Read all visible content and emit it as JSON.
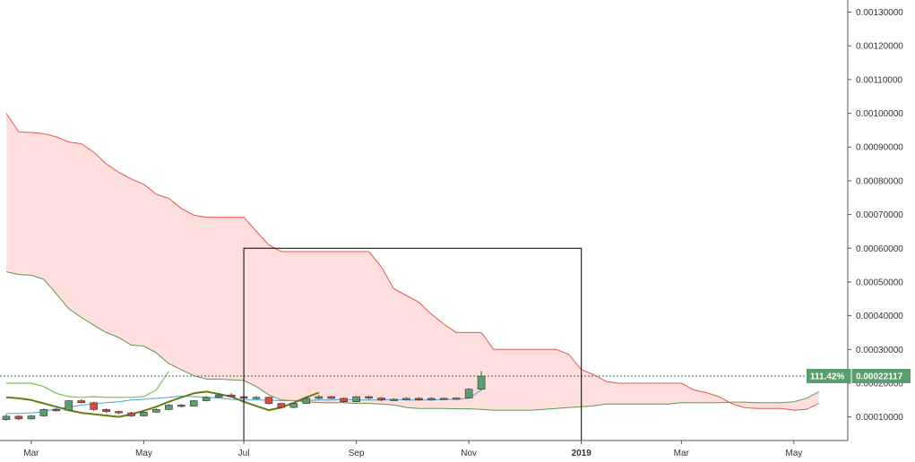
{
  "chart_data": {
    "type": "candlestick",
    "x_ticks": [
      {
        "label": "Mar",
        "bold": false
      },
      {
        "label": "May",
        "bold": false
      },
      {
        "label": "Jul",
        "bold": false
      },
      {
        "label": "Sep",
        "bold": false
      },
      {
        "label": "Nov",
        "bold": false
      },
      {
        "label": "2019",
        "bold": true
      },
      {
        "label": "Mar",
        "bold": false
      },
      {
        "label": "May",
        "bold": false
      }
    ],
    "y_ticks": [
      "0.00010000",
      "0.00020000",
      "0.00030000",
      "0.00040000",
      "0.00050000",
      "0.00060000",
      "0.00070000",
      "0.00080000",
      "0.00090000",
      "0.00100000",
      "0.00110000",
      "0.00120000",
      "0.00130000"
    ],
    "ylim": [
      3e-05,
      0.00132
    ],
    "week_range": [
      0,
      67
    ],
    "x_tick_weeks": [
      2,
      11,
      19,
      28,
      37,
      46,
      54,
      63
    ],
    "last_price": {
      "change_label": "111.42%",
      "value": "0.00022117",
      "numeric": 0.00022117
    },
    "span_a": [
      [
        0,
        0.00053
      ],
      [
        1,
        0.000522
      ],
      [
        2,
        0.00052
      ],
      [
        3,
        0.000508
      ],
      [
        4,
        0.000465
      ],
      [
        5,
        0.00042
      ],
      [
        6,
        0.000395
      ],
      [
        7,
        0.000372
      ],
      [
        8,
        0.00035
      ],
      [
        9,
        0.000335
      ],
      [
        10,
        0.000313
      ],
      [
        11,
        0.00031
      ],
      [
        12,
        0.00029
      ],
      [
        13,
        0.000258
      ],
      [
        14,
        0.00024
      ],
      [
        15,
        0.000222
      ],
      [
        16,
        0.000212
      ],
      [
        17,
        0.000212
      ],
      [
        18,
        0.00021
      ],
      [
        19,
        0.000208
      ],
      [
        20,
        0.00019
      ],
      [
        21,
        0.000165
      ],
      [
        22,
        0.00015
      ],
      [
        23,
        0.000148
      ],
      [
        24,
        0.000145
      ],
      [
        25,
        0.000142
      ],
      [
        26,
        0.000142
      ],
      [
        27,
        0.000142
      ],
      [
        28,
        0.00014
      ],
      [
        29,
        0.00014
      ],
      [
        30,
        0.000138
      ],
      [
        31,
        0.000135
      ],
      [
        32,
        0.000128
      ],
      [
        33,
        0.000125
      ],
      [
        34,
        0.000125
      ],
      [
        35,
        0.000125
      ],
      [
        36,
        0.000124
      ],
      [
        37,
        0.000124
      ],
      [
        38,
        0.000122
      ],
      [
        39,
        0.00012
      ],
      [
        40,
        0.00012
      ],
      [
        41,
        0.00012
      ],
      [
        42,
        0.00012
      ],
      [
        43,
        0.000122
      ],
      [
        44,
        0.000125
      ],
      [
        45,
        0.000128
      ],
      [
        46,
        0.00013
      ],
      [
        47,
        0.000133
      ],
      [
        48,
        0.000138
      ],
      [
        49,
        0.000138
      ],
      [
        50,
        0.000138
      ],
      [
        51,
        0.000138
      ],
      [
        52,
        0.000138
      ],
      [
        53,
        0.000138
      ],
      [
        54,
        0.000142
      ],
      [
        55,
        0.000142
      ],
      [
        56,
        0.000142
      ],
      [
        57,
        0.000142
      ],
      [
        58,
        0.000144
      ],
      [
        59,
        0.000144
      ],
      [
        60,
        0.000142
      ],
      [
        61,
        0.000142
      ],
      [
        62,
        0.000142
      ],
      [
        63,
        0.000145
      ],
      [
        64,
        0.000155
      ],
      [
        65,
        0.000175
      ]
    ],
    "span_b": [
      [
        0,
        0.001
      ],
      [
        1,
        0.000945
      ],
      [
        2,
        0.000943
      ],
      [
        3,
        0.00094
      ],
      [
        4,
        0.00093
      ],
      [
        5,
        0.000915
      ],
      [
        6,
        0.00091
      ],
      [
        7,
        0.000885
      ],
      [
        8,
        0.00085
      ],
      [
        9,
        0.000825
      ],
      [
        10,
        0.000805
      ],
      [
        11,
        0.00079
      ],
      [
        12,
        0.00076
      ],
      [
        13,
        0.000748
      ],
      [
        14,
        0.000718
      ],
      [
        15,
        0.000698
      ],
      [
        16,
        0.000692
      ],
      [
        17,
        0.000692
      ],
      [
        18,
        0.000692
      ],
      [
        19,
        0.000692
      ],
      [
        20,
        0.00065
      ],
      [
        21,
        0.00061
      ],
      [
        22,
        0.00059
      ],
      [
        23,
        0.00059
      ],
      [
        24,
        0.00059
      ],
      [
        25,
        0.00059
      ],
      [
        26,
        0.00059
      ],
      [
        27,
        0.00059
      ],
      [
        28,
        0.00059
      ],
      [
        29,
        0.00059
      ],
      [
        30,
        0.000545
      ],
      [
        31,
        0.00048
      ],
      [
        32,
        0.00046
      ],
      [
        33,
        0.00044
      ],
      [
        34,
        0.000405
      ],
      [
        35,
        0.000375
      ],
      [
        36,
        0.00035
      ],
      [
        37,
        0.00035
      ],
      [
        38,
        0.00035
      ],
      [
        39,
        0.0003
      ],
      [
        40,
        0.0003
      ],
      [
        41,
        0.0003
      ],
      [
        42,
        0.0003
      ],
      [
        43,
        0.0003
      ],
      [
        44,
        0.0003
      ],
      [
        45,
        0.000285
      ],
      [
        46,
        0.00024
      ],
      [
        47,
        0.000225
      ],
      [
        48,
        0.000205
      ],
      [
        49,
        0.0002
      ],
      [
        50,
        0.0002
      ],
      [
        51,
        0.0002
      ],
      [
        52,
        0.0002
      ],
      [
        53,
        0.0002
      ],
      [
        54,
        0.0002
      ],
      [
        55,
        0.00018
      ],
      [
        56,
        0.000172
      ],
      [
        57,
        0.00016
      ],
      [
        58,
        0.00014
      ],
      [
        59,
        0.000128
      ],
      [
        60,
        0.000125
      ],
      [
        61,
        0.000125
      ],
      [
        62,
        0.000125
      ],
      [
        63,
        0.00012
      ],
      [
        64,
        0.000122
      ],
      [
        65,
        0.00014
      ]
    ],
    "chikou": [
      [
        0,
        0.0002
      ],
      [
        1,
        0.0002
      ],
      [
        2,
        0.0002
      ],
      [
        3,
        0.00019
      ],
      [
        4,
        0.00017
      ],
      [
        5,
        0.00016
      ],
      [
        6,
        0.000158
      ],
      [
        7,
        0.00016
      ],
      [
        8,
        0.000158
      ],
      [
        9,
        0.000158
      ],
      [
        10,
        0.000158
      ],
      [
        11,
        0.00016
      ],
      [
        12,
        0.00018
      ],
      [
        13,
        0.000235
      ]
    ],
    "tenkan": [
      [
        0,
        0.00011
      ],
      [
        1,
        0.00011
      ],
      [
        2,
        0.000112
      ],
      [
        3,
        0.000115
      ],
      [
        4,
        0.000125
      ],
      [
        5,
        0.000128
      ],
      [
        6,
        0.000135
      ],
      [
        7,
        0.000138
      ],
      [
        8,
        0.000142
      ],
      [
        9,
        0.000145
      ],
      [
        10,
        0.00015
      ],
      [
        11,
        0.000152
      ],
      [
        12,
        0.000155
      ],
      [
        13,
        0.000158
      ],
      [
        14,
        0.000162
      ],
      [
        15,
        0.00016
      ],
      [
        16,
        0.000158
      ],
      [
        17,
        0.000156
      ],
      [
        18,
        0.000152
      ],
      [
        19,
        0.00015
      ],
      [
        20,
        0.00015
      ],
      [
        21,
        0.00015
      ],
      [
        22,
        0.000148
      ],
      [
        23,
        0.000148
      ],
      [
        24,
        0.000148
      ],
      [
        25,
        0.00015
      ],
      [
        26,
        0.00015
      ],
      [
        27,
        0.000152
      ],
      [
        28,
        0.00015
      ],
      [
        29,
        0.00015
      ],
      [
        30,
        0.00015
      ],
      [
        31,
        0.000152
      ],
      [
        32,
        0.00015
      ],
      [
        33,
        0.00015
      ],
      [
        34,
        0.00015
      ],
      [
        35,
        0.000152
      ],
      [
        36,
        0.000152
      ],
      [
        37,
        0.000155
      ],
      [
        38,
        0.00018
      ]
    ],
    "kijun": [
      [
        0,
        0.000158
      ],
      [
        1,
        0.000155
      ],
      [
        2,
        0.00015
      ],
      [
        3,
        0.00014
      ],
      [
        4,
        0.00013
      ],
      [
        5,
        0.00012
      ],
      [
        6,
        0.000112
      ],
      [
        7,
        0.000108
      ],
      [
        8,
        0.000104
      ],
      [
        9,
        0.0001
      ],
      [
        10,
        0.000108
      ],
      [
        11,
        0.000118
      ],
      [
        12,
        0.00013
      ],
      [
        13,
        0.000145
      ],
      [
        14,
        0.000158
      ],
      [
        15,
        0.00017
      ],
      [
        16,
        0.000175
      ],
      [
        17,
        0.000168
      ],
      [
        18,
        0.00016
      ],
      [
        19,
        0.000145
      ],
      [
        20,
        0.000132
      ],
      [
        21,
        0.00012
      ],
      [
        22,
        0.000128
      ],
      [
        23,
        0.000142
      ],
      [
        24,
        0.000158
      ],
      [
        25,
        0.000172
      ]
    ],
    "candles": [
      [
        0,
        9.2e-05,
        0.000102,
        0.000108,
        8.8e-05
      ],
      [
        1,
        0.000102,
        9.4e-05,
        0.000105,
        9e-05
      ],
      [
        2,
        9.4e-05,
        0.000103,
        0.000106,
        9.2e-05
      ],
      [
        3,
        0.000103,
        0.000122,
        0.000125,
        0.0001
      ],
      [
        4,
        0.000122,
        0.00012,
        0.000124,
        0.000116
      ],
      [
        5,
        0.00012,
        0.000148,
        0.00015,
        0.000118
      ],
      [
        6,
        0.000148,
        0.000142,
        0.000152,
        0.00014
      ],
      [
        7,
        0.000142,
        0.000122,
        0.000145,
        0.000118
      ],
      [
        8,
        0.000122,
        0.000116,
        0.000125,
        0.000112
      ],
      [
        9,
        0.000116,
        0.000112,
        0.000118,
        0.000108
      ],
      [
        10,
        0.000112,
        0.000103,
        0.000115,
        0.0001
      ],
      [
        11,
        0.000103,
        0.000114,
        0.000116,
        0.000101
      ],
      [
        12,
        0.000114,
        0.000122,
        0.000125,
        0.000112
      ],
      [
        13,
        0.000122,
        0.000135,
        0.000138,
        0.00012
      ],
      [
        14,
        0.000135,
        0.000132,
        0.000138,
        0.000128
      ],
      [
        15,
        0.000132,
        0.000148,
        0.00015,
        0.00013
      ],
      [
        16,
        0.000148,
        0.000158,
        0.000162,
        0.000146
      ],
      [
        17,
        0.000158,
        0.000165,
        0.00017,
        0.000155
      ],
      [
        18,
        0.000165,
        0.00016,
        0.00017,
        0.000158
      ],
      [
        19,
        0.00016,
        0.000155,
        0.000162,
        0.00015
      ],
      [
        20,
        0.000155,
        0.000158,
        0.000162,
        0.000152
      ],
      [
        21,
        0.000158,
        0.00014,
        0.00016,
        0.000136
      ],
      [
        22,
        0.00014,
        0.000128,
        0.000142,
        0.000125
      ],
      [
        23,
        0.000128,
        0.00014,
        0.000142,
        0.000126
      ],
      [
        24,
        0.00014,
        0.000155,
        0.00016,
        0.000138
      ],
      [
        25,
        0.000155,
        0.00016,
        0.000165,
        0.000152
      ],
      [
        26,
        0.00016,
        0.000155,
        0.000162,
        0.000152
      ],
      [
        27,
        0.000155,
        0.000145,
        0.000158,
        0.000142
      ],
      [
        28,
        0.000145,
        0.00016,
        0.000162,
        0.000143
      ],
      [
        29,
        0.00016,
        0.000156,
        0.000162,
        0.000152
      ],
      [
        30,
        0.000156,
        0.00015,
        0.000158,
        0.000146
      ],
      [
        31,
        0.00015,
        0.000152,
        0.000155,
        0.000148
      ],
      [
        32,
        0.000152,
        0.000155,
        0.000158,
        0.00015
      ],
      [
        33,
        0.000155,
        0.00015,
        0.000158,
        0.000148
      ],
      [
        34,
        0.00015,
        0.000155,
        0.000158,
        0.000148
      ],
      [
        35,
        0.000155,
        0.000152,
        0.000157,
        0.00015
      ],
      [
        36,
        0.000152,
        0.000156,
        0.000158,
        0.00015
      ],
      [
        37,
        0.000156,
        0.000182,
        0.000185,
        0.000154
      ],
      [
        38,
        0.000182,
        0.000221,
        0.000235,
        0.000178
      ]
    ],
    "colors": {
      "up": "#5a9e6f",
      "down": "#d9473e",
      "span_a": "#5f9a4a",
      "span_b": "#e65a52",
      "cloud_fill": "#ffdede",
      "tenkan": "#4ca3d8",
      "kijun": "#6b7a12",
      "chikou": "#7cc24f",
      "price_tag": "#5a9e6f",
      "box": "#000000"
    }
  }
}
